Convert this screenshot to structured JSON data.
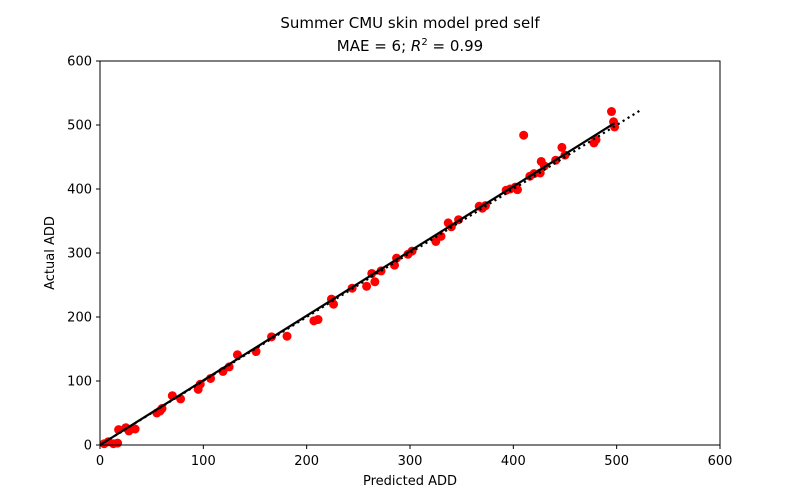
{
  "chart_data": {
    "type": "scatter",
    "title_line1": "Summer CMU skin model pred self",
    "title_line2_prefix": "MAE = 6; ",
    "title_line2_r": "R",
    "title_line2_sup": "2",
    "title_line2_suffix": " = 0.99",
    "xlabel": "Predicted ADD",
    "ylabel": "Actual ADD",
    "xlim": [
      0,
      600
    ],
    "ylim": [
      0,
      600
    ],
    "xticks": [
      "0",
      "100",
      "200",
      "300",
      "400",
      "500",
      "600"
    ],
    "yticks": [
      "0",
      "100",
      "200",
      "300",
      "400",
      "500",
      "600"
    ],
    "grid": false,
    "point_color": "#ff0000",
    "line_color": "#000000",
    "points": [
      [
        4,
        2
      ],
      [
        8,
        5
      ],
      [
        13,
        2
      ],
      [
        17,
        3
      ],
      [
        18,
        24
      ],
      [
        25,
        27
      ],
      [
        28,
        22
      ],
      [
        34,
        25
      ],
      [
        55,
        50
      ],
      [
        58,
        53
      ],
      [
        60,
        57
      ],
      [
        70,
        77
      ],
      [
        78,
        72
      ],
      [
        95,
        87
      ],
      [
        97,
        95
      ],
      [
        107,
        104
      ],
      [
        119,
        115
      ],
      [
        125,
        122
      ],
      [
        133,
        141
      ],
      [
        151,
        146
      ],
      [
        166,
        169
      ],
      [
        181,
        170
      ],
      [
        207,
        194
      ],
      [
        211,
        196
      ],
      [
        224,
        228
      ],
      [
        226,
        220
      ],
      [
        244,
        245
      ],
      [
        258,
        248
      ],
      [
        263,
        268
      ],
      [
        266,
        255
      ],
      [
        272,
        272
      ],
      [
        285,
        281
      ],
      [
        287,
        292
      ],
      [
        298,
        298
      ],
      [
        302,
        303
      ],
      [
        325,
        318
      ],
      [
        330,
        326
      ],
      [
        337,
        347
      ],
      [
        340,
        341
      ],
      [
        347,
        352
      ],
      [
        367,
        373
      ],
      [
        370,
        370
      ],
      [
        373,
        374
      ],
      [
        393,
        398
      ],
      [
        397,
        400
      ],
      [
        402,
        403
      ],
      [
        404,
        399
      ],
      [
        410,
        484
      ],
      [
        416,
        420
      ],
      [
        420,
        424
      ],
      [
        426,
        425
      ],
      [
        427,
        443
      ],
      [
        430,
        436
      ],
      [
        441,
        445
      ],
      [
        447,
        465
      ],
      [
        450,
        453
      ],
      [
        478,
        472
      ],
      [
        480,
        477
      ],
      [
        495,
        521
      ],
      [
        497,
        505
      ],
      [
        498,
        497
      ]
    ],
    "fit_line": {
      "from": [
        0,
        0
      ],
      "to": [
        498,
        503
      ]
    },
    "identity_line": {
      "from": [
        0,
        0
      ],
      "to": [
        522,
        522
      ],
      "style": "dotted"
    }
  }
}
